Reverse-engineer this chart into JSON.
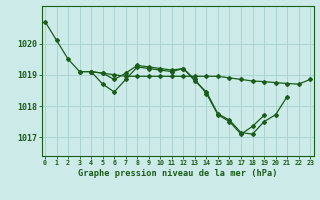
{
  "background_color": "#cceae8",
  "grid_color": "#aad4d0",
  "line_color": "#1a5c1a",
  "title": "Graphe pression niveau de la mer (hPa)",
  "yticks": [
    1017,
    1018,
    1019,
    1020
  ],
  "ylim": [
    1016.4,
    1021.2
  ],
  "xlim": [
    -0.3,
    23.3
  ],
  "series": [
    {
      "x": [
        0,
        1,
        2,
        3,
        4,
        5,
        6,
        7,
        8,
        9,
        10,
        11,
        12,
        13,
        14,
        15,
        16,
        17,
        18,
        19,
        20,
        21
      ],
      "y": [
        1020.7,
        1020.1,
        1019.5,
        1019.1,
        1019.1,
        1018.7,
        1018.45,
        1018.85,
        1019.25,
        1019.2,
        1019.15,
        1019.1,
        1019.2,
        1018.8,
        1018.45,
        1017.75,
        1017.55,
        1017.15,
        1017.1,
        1017.5,
        1017.72,
        1018.3
      ]
    },
    {
      "x": [
        3,
        4,
        5,
        6,
        7,
        8,
        9,
        10,
        11,
        12,
        13,
        14,
        15,
        16,
        17,
        18,
        19,
        20,
        21,
        22,
        23
      ],
      "y": [
        1019.1,
        1019.1,
        1019.05,
        1019.0,
        1018.95,
        1018.95,
        1018.95,
        1018.95,
        1018.95,
        1018.95,
        1018.95,
        1018.95,
        1018.95,
        1018.9,
        1018.85,
        1018.8,
        1018.78,
        1018.75,
        1018.72,
        1018.7,
        1018.85
      ]
    },
    {
      "x": [
        4,
        5,
        6,
        7,
        8,
        9,
        10,
        11,
        12,
        13,
        14,
        15,
        16,
        17,
        18,
        19,
        20,
        21
      ],
      "y": [
        1019.1,
        1019.05,
        1018.85,
        1019.05,
        1019.3,
        1019.25,
        1019.2,
        1019.15,
        1019.2,
        1018.85,
        1018.4,
        1017.72,
        1017.5,
        1017.1,
        1017.35,
        1017.7,
        null,
        null
      ]
    }
  ]
}
